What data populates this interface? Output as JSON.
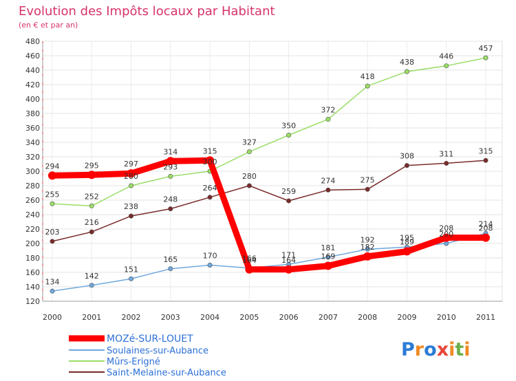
{
  "chart_data": {
    "type": "line",
    "title": "Evolution des Impôts locaux par Habitant",
    "subtitle": "(en € et par an)",
    "xlabel": "",
    "ylabel": "",
    "categories": [
      "2000",
      "2001",
      "2002",
      "2003",
      "2004",
      "2005",
      "2006",
      "2007",
      "2008",
      "2009",
      "2010",
      "2011"
    ],
    "ylim": [
      120,
      480
    ],
    "yticks": [
      120,
      140,
      160,
      180,
      200,
      220,
      240,
      260,
      280,
      300,
      320,
      340,
      360,
      380,
      400,
      420,
      440,
      460,
      480
    ],
    "grid": true,
    "legend_position": "bottom-left",
    "series": [
      {
        "name": "MOZé-SUR-LOUET",
        "color": "#ff0000",
        "values": [
          294,
          295,
          297,
          314,
          315,
          164,
          164,
          169,
          182,
          189,
          208,
          208
        ]
      },
      {
        "name": "Soulaines-sur-Aubance",
        "color": "#6fa8dc",
        "values": [
          134,
          142,
          151,
          165,
          170,
          166,
          171,
          181,
          192,
          195,
          200,
          214
        ]
      },
      {
        "name": "Mûrs-Erigné",
        "color": "#99dd66",
        "values": [
          255,
          252,
          280,
          293,
          300,
          327,
          350,
          372,
          418,
          438,
          446,
          457
        ]
      },
      {
        "name": "Saint-Melaine-sur-Aubance",
        "color": "#7a2a2a",
        "values": [
          203,
          216,
          238,
          248,
          264,
          280,
          259,
          274,
          275,
          308,
          311,
          315
        ]
      }
    ]
  },
  "branding": {
    "logo_text": "Proxiti"
  }
}
